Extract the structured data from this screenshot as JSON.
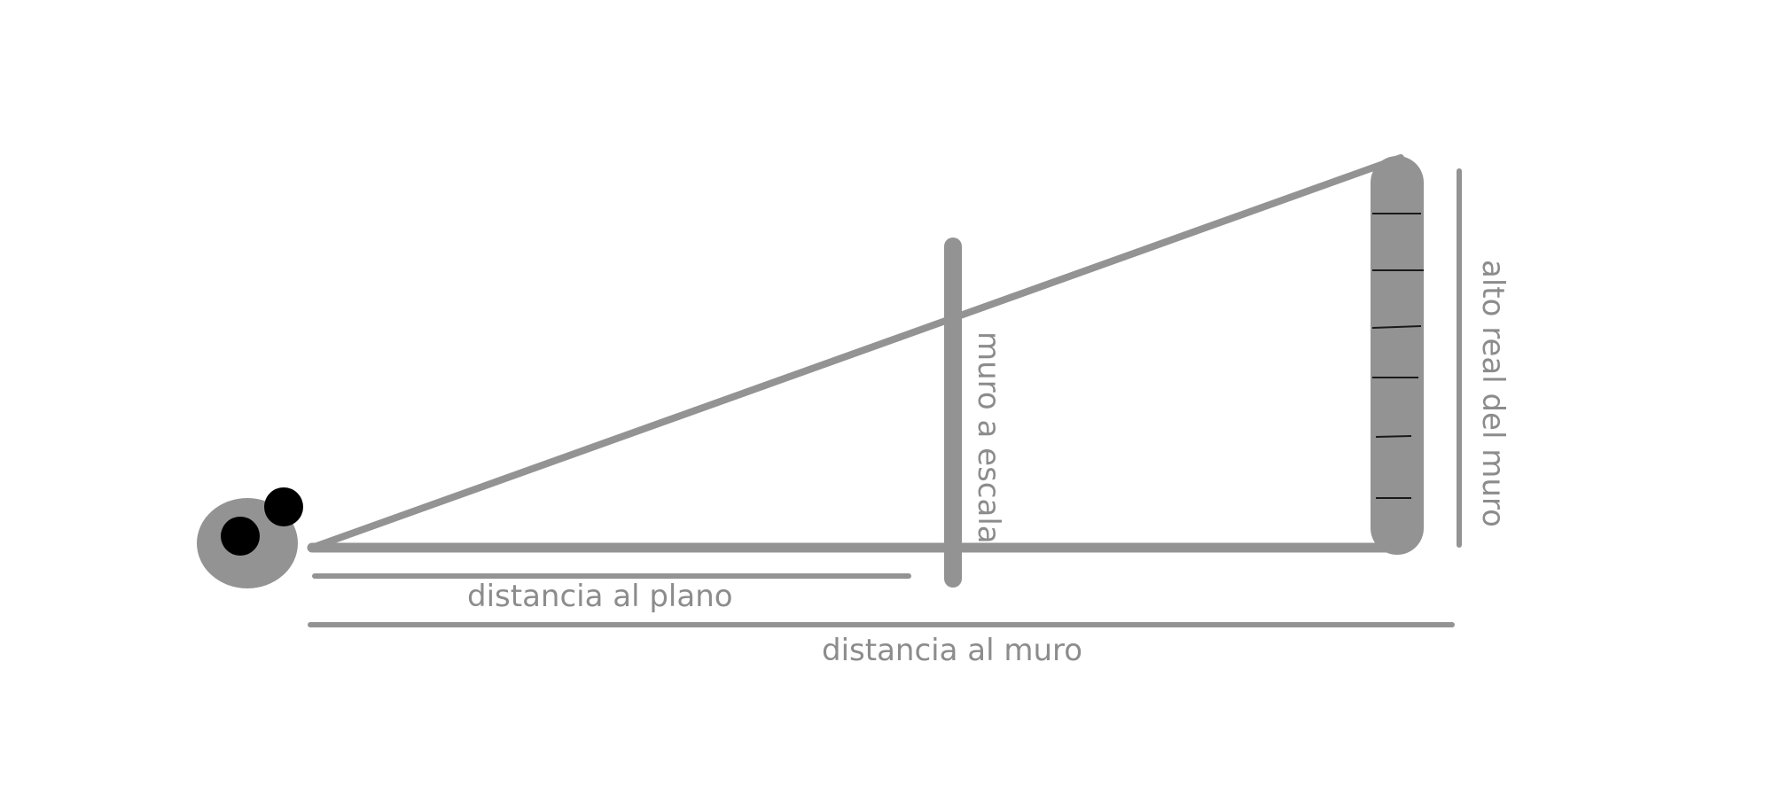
{
  "labels": {
    "distance_to_plane": "distancia al plano",
    "distance_to_wall": "distancia al muro",
    "scaled_wall": "muro a escala",
    "real_wall_height": "alto real del muro"
  },
  "colors": {
    "line": "#939393",
    "label": "#8c8c8c",
    "eye_outer": "#939393",
    "eye_pupil": "#000000",
    "background": "#ffffff"
  },
  "icons": {
    "observer": "eye-icon"
  }
}
